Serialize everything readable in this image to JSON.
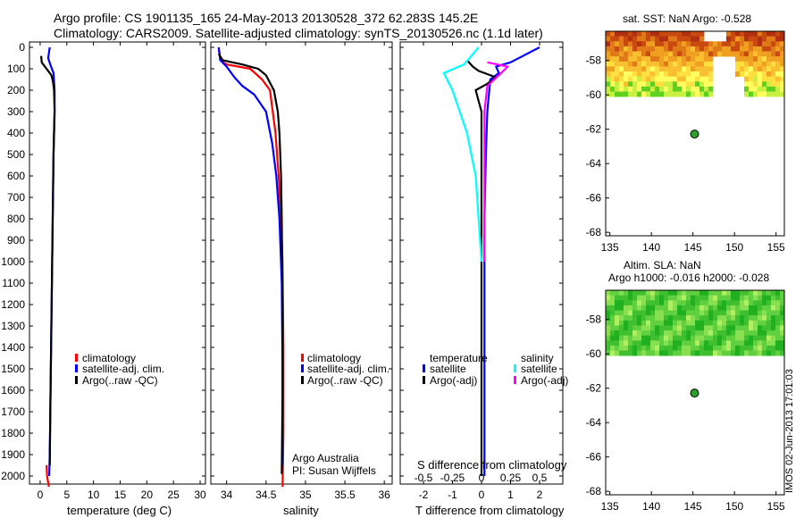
{
  "header": {
    "title_line1": "Argo profile: CS 1901135_165 24-May-2013 20130528_372 62.283S 145.2E",
    "title_line2": "Climatology: CARS2009. Satellite-adjusted climatology: synTS_20130526.nc (1.1d later)"
  },
  "colors": {
    "climatology": "#ff0000",
    "satellite": "#0000ff",
    "argo": "#000000",
    "sal_satellite": "#00ffff",
    "sal_argo": "#ff00ff",
    "marker": "#2e9e2e"
  },
  "chart_data": [
    {
      "type": "line",
      "name": "temperature-panel",
      "xlabel": "temperature (deg C)",
      "xlim": [
        -2,
        31
      ],
      "xticks": [
        "0",
        "5",
        "10",
        "15",
        "20",
        "25",
        "30"
      ],
      "ylim": [
        0,
        2050
      ],
      "yticks": [
        "0",
        "100",
        "200",
        "300",
        "400",
        "500",
        "600",
        "700",
        "800",
        "900",
        "1000",
        "1100",
        "1200",
        "1300",
        "1400",
        "1500",
        "1600",
        "1700",
        "1800",
        "1900",
        "2000"
      ],
      "legend": [
        "climatology",
        "satellite-adj. clim.",
        "Argo(..raw -QC)"
      ],
      "series": [
        {
          "name": "climatology",
          "x": [
            1.2,
            1.3,
            1.5,
            1.6,
            1.6
          ],
          "y": [
            1950,
            2000,
            2030,
            2040,
            2050
          ]
        },
        {
          "name": "satellite-adj. clim.",
          "x": [
            1.8,
            1.5,
            1.9,
            2.5,
            2.7,
            2.7,
            2.6,
            2.5,
            2.4,
            2.3,
            2.2,
            2.1,
            2.0,
            1.9,
            1.8,
            1.7
          ],
          "y": [
            0,
            50,
            80,
            120,
            200,
            300,
            400,
            500,
            700,
            900,
            1100,
            1300,
            1500,
            1700,
            1900,
            2000
          ]
        },
        {
          "name": "Argo(..raw -QC)",
          "x": [
            0.2,
            0.3,
            1.2,
            2.1,
            2.4,
            2.6,
            2.7,
            2.6,
            2.5,
            2.4,
            2.3,
            2.2,
            2.1,
            2.0,
            1.9,
            1.8
          ],
          "y": [
            40,
            70,
            100,
            130,
            160,
            200,
            300,
            400,
            500,
            700,
            900,
            1100,
            1300,
            1500,
            1700,
            1950
          ]
        }
      ]
    },
    {
      "type": "line",
      "name": "salinity-panel",
      "xlabel": "salinity",
      "xlim": [
        33.8,
        36.1
      ],
      "xticks": [
        "34",
        "34.5",
        "35",
        "35.5",
        "36"
      ],
      "ylim": [
        0,
        2050
      ],
      "legend": [
        "climatology",
        "satellite-adj. clim.",
        "Argo(..raw -QC)"
      ],
      "annotation": [
        "Argo Australia",
        "PI: Susan Wijffels"
      ],
      "series": [
        {
          "name": "climatology",
          "x": [
            33.9,
            33.92,
            34.0,
            34.3,
            34.45,
            34.55,
            34.62,
            34.66,
            34.69,
            34.71,
            34.72,
            34.72,
            34.71
          ],
          "y": [
            0,
            60,
            80,
            100,
            150,
            200,
            400,
            600,
            800,
            1000,
            1400,
            1800,
            2050
          ]
        },
        {
          "name": "satellite-adj. clim.",
          "x": [
            33.9,
            33.92,
            34.0,
            34.1,
            34.2,
            34.35,
            34.5,
            34.58,
            34.63,
            34.67,
            34.7,
            34.71,
            34.71
          ],
          "y": [
            0,
            60,
            90,
            140,
            180,
            220,
            300,
            450,
            600,
            800,
            1100,
            1500,
            1950
          ]
        },
        {
          "name": "Argo(..raw -QC)",
          "x": [
            33.9,
            33.95,
            34.2,
            34.4,
            34.5,
            34.6,
            34.65,
            34.67,
            34.69,
            34.7,
            34.71,
            34.71,
            34.7
          ],
          "y": [
            30,
            60,
            80,
            100,
            130,
            200,
            300,
            400,
            600,
            800,
            1200,
            1600,
            1990
          ]
        }
      ]
    },
    {
      "type": "line",
      "name": "difference-panel",
      "xlabel": "T difference from climatology",
      "x2label": "S difference from climatology",
      "xlim": [
        -2.8,
        2.8
      ],
      "xticks": [
        "-2",
        "-1",
        "0",
        "1",
        "2"
      ],
      "x2ticks": [
        "-0.5",
        "-0.25",
        "0",
        "0.25",
        "0.5"
      ],
      "ylim": [
        0,
        2050
      ],
      "legend": {
        "temperature_title": "temperature",
        "salinity_title": "salinity",
        "items": [
          "satellite",
          "Argo(-adj)",
          "satellite",
          "Argo(-adj)"
        ]
      },
      "series": [
        {
          "name": "temperature satellite",
          "x": [
            2.0,
            1.0,
            0.5,
            0.6,
            0.3,
            0.2,
            0.15,
            0.1,
            0.1,
            0.1,
            0.1
          ],
          "y": [
            0,
            70,
            90,
            120,
            150,
            300,
            500,
            800,
            1200,
            1600,
            2000
          ]
        },
        {
          "name": "temperature Argo(-adj)",
          "x": [
            -0.5,
            -0.3,
            -0.1,
            0.5,
            0.2,
            -0.2,
            0.0,
            0.0,
            0.0,
            0.0,
            0.0
          ],
          "y": [
            60,
            90,
            110,
            140,
            170,
            200,
            300,
            600,
            1000,
            1500,
            2000
          ]
        },
        {
          "name": "salinity satellite",
          "x": [
            -0.1,
            -0.6,
            -1.3,
            -1.0,
            -0.5,
            -0.2,
            -0.1,
            0.0
          ],
          "y": [
            0,
            80,
            120,
            200,
            400,
            600,
            800,
            1000
          ]
        },
        {
          "name": "salinity Argo(-adj)",
          "x": [
            0.2,
            0.9,
            0.6,
            0.2,
            0.1,
            0.1,
            0.1,
            0.1
          ],
          "y": [
            70,
            90,
            130,
            180,
            300,
            500,
            800,
            1000
          ]
        }
      ]
    },
    {
      "type": "heatmap",
      "name": "sst-map",
      "title": "sat. SST: NaN Argo: -0.528",
      "xlim": [
        134.5,
        156
      ],
      "ylim": [
        -68.2,
        -56.3
      ],
      "xticks": [
        "135",
        "140",
        "145",
        "150",
        "155"
      ],
      "yticks": [
        "-58",
        "-60",
        "-62",
        "-64",
        "-66",
        "-68"
      ],
      "argo_position": {
        "lon": 145.2,
        "lat": -62.283
      }
    },
    {
      "type": "heatmap",
      "name": "sla-map",
      "title_line1": "Altim. SLA: NaN",
      "title_line2": "Argo h1000: -0.016 h2000: -0.028",
      "xlim": [
        134.5,
        156
      ],
      "ylim": [
        -68.2,
        -56.3
      ],
      "xticks": [
        "135",
        "140",
        "145",
        "150",
        "155"
      ],
      "yticks": [
        "-58",
        "-60",
        "-62",
        "-64",
        "-66",
        "-68"
      ],
      "argo_position": {
        "lon": 145.2,
        "lat": -62.283
      }
    }
  ],
  "footer": {
    "stamp": "IMOS 02-Jun-2013 17:01:03"
  }
}
